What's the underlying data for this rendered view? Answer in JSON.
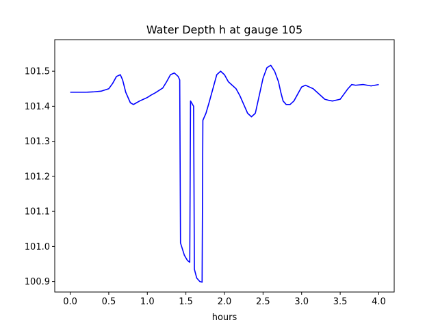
{
  "chart_data": {
    "type": "line",
    "title": "Water Depth h at gauge 105",
    "xlabel": "hours",
    "ylabel": "",
    "xlim": [
      -0.2,
      4.2
    ],
    "ylim": [
      100.87,
      101.59
    ],
    "xticks": [
      0.0,
      0.5,
      1.0,
      1.5,
      2.0,
      2.5,
      3.0,
      3.5,
      4.0
    ],
    "xtick_labels": [
      "0.0",
      "0.5",
      "1.0",
      "1.5",
      "2.0",
      "2.5",
      "3.0",
      "3.5",
      "4.0"
    ],
    "yticks": [
      100.9,
      101.0,
      101.1,
      101.2,
      101.3,
      101.4,
      101.5
    ],
    "ytick_labels": [
      "100.9",
      "101.0",
      "101.1",
      "101.2",
      "101.3",
      "101.4",
      "101.5"
    ],
    "grid": false,
    "series": [
      {
        "color": "#0000ff",
        "x": [
          0.0,
          0.2,
          0.3,
          0.4,
          0.5,
          0.55,
          0.6,
          0.65,
          0.68,
          0.72,
          0.78,
          0.82,
          0.86,
          0.9,
          0.95,
          1.0,
          1.05,
          1.1,
          1.2,
          1.25,
          1.3,
          1.35,
          1.4,
          1.42,
          1.43,
          1.48,
          1.52,
          1.55,
          1.56,
          1.6,
          1.61,
          1.64,
          1.68,
          1.71,
          1.72,
          1.76,
          1.8,
          1.85,
          1.9,
          1.95,
          2.0,
          2.05,
          2.1,
          2.15,
          2.2,
          2.25,
          2.3,
          2.35,
          2.4,
          2.45,
          2.5,
          2.55,
          2.6,
          2.65,
          2.7,
          2.73,
          2.76,
          2.8,
          2.85,
          2.9,
          2.95,
          3.0,
          3.05,
          3.1,
          3.15,
          3.2,
          3.25,
          3.3,
          3.35,
          3.4,
          3.5,
          3.55,
          3.6,
          3.65,
          3.7,
          3.8,
          3.85,
          3.9,
          3.95,
          4.0
        ],
        "y": [
          101.44,
          101.44,
          101.441,
          101.443,
          101.45,
          101.465,
          101.485,
          101.49,
          101.475,
          101.44,
          101.41,
          101.405,
          101.41,
          101.415,
          101.42,
          101.425,
          101.432,
          101.438,
          101.452,
          101.47,
          101.49,
          101.495,
          101.485,
          101.475,
          101.01,
          100.975,
          100.96,
          100.955,
          101.415,
          101.4,
          100.935,
          100.91,
          100.9,
          100.898,
          101.36,
          101.38,
          101.41,
          101.45,
          101.49,
          101.5,
          101.49,
          101.47,
          101.46,
          101.45,
          101.43,
          101.405,
          101.38,
          101.37,
          101.38,
          101.43,
          101.48,
          101.51,
          101.517,
          101.5,
          101.47,
          101.44,
          101.415,
          101.405,
          101.405,
          101.415,
          101.435,
          101.455,
          101.46,
          101.455,
          101.45,
          101.44,
          101.43,
          101.42,
          101.417,
          101.415,
          101.42,
          101.435,
          101.45,
          101.462,
          101.46,
          101.462,
          101.46,
          101.458,
          101.46,
          101.462
        ]
      }
    ]
  }
}
